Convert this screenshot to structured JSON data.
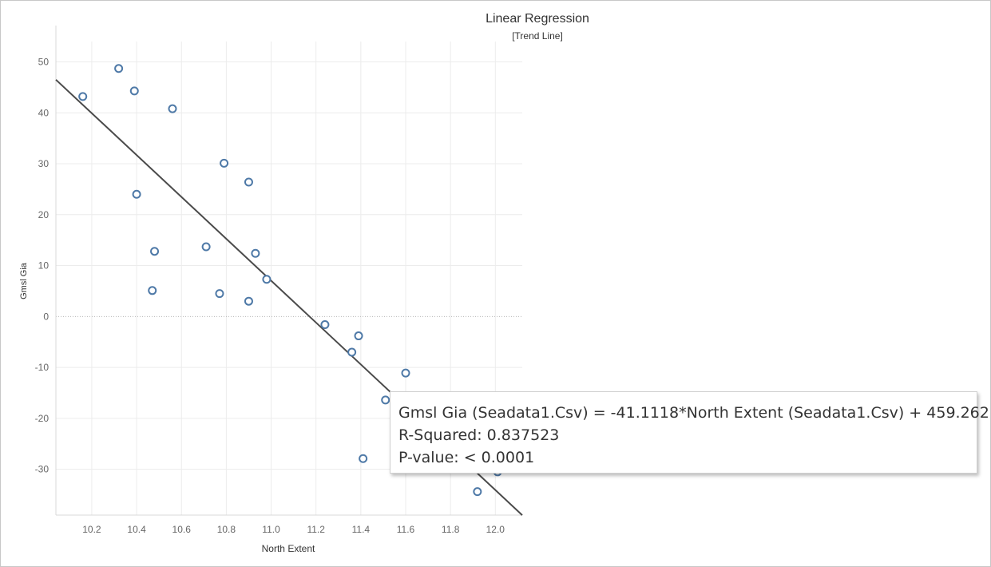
{
  "chart_data": {
    "type": "scatter",
    "title": "Linear Regression",
    "subtitle": "[Trend Line]",
    "xlabel": "North Extent",
    "ylabel": "Gmsl Gia",
    "xlim": [
      10.04,
      12.12
    ],
    "ylim": [
      -39,
      54
    ],
    "x_ticks": [
      10.2,
      10.4,
      10.6,
      10.8,
      11.0,
      11.2,
      11.4,
      11.6,
      11.8,
      12.0
    ],
    "x_tick_labels": [
      "10.2",
      "10.4",
      "10.6",
      "10.8",
      "11.0",
      "11.2",
      "11.4",
      "11.6",
      "11.8",
      "12.0"
    ],
    "y_ticks": [
      -30,
      -20,
      -10,
      0,
      10,
      20,
      30,
      40,
      50
    ],
    "y_tick_labels": [
      "-30",
      "-20",
      "-10",
      "0",
      "10",
      "20",
      "30",
      "40",
      "50"
    ],
    "grid": true,
    "marker_color": "#4e79a7",
    "trend_color": "#4a4a4a",
    "trend_line": {
      "slope": -41.1118,
      "intercept": 459.262
    },
    "points": [
      {
        "x": 10.16,
        "y": 43.2
      },
      {
        "x": 10.32,
        "y": 48.7
      },
      {
        "x": 10.39,
        "y": 44.3
      },
      {
        "x": 10.4,
        "y": 24.0
      },
      {
        "x": 10.47,
        "y": 5.1
      },
      {
        "x": 10.48,
        "y": 12.8
      },
      {
        "x": 10.56,
        "y": 40.8
      },
      {
        "x": 10.71,
        "y": 13.7
      },
      {
        "x": 10.77,
        "y": 4.5
      },
      {
        "x": 10.79,
        "y": 30.1
      },
      {
        "x": 10.9,
        "y": 26.4
      },
      {
        "x": 10.9,
        "y": 3.0
      },
      {
        "x": 10.93,
        "y": 12.4
      },
      {
        "x": 10.98,
        "y": 7.3
      },
      {
        "x": 11.24,
        "y": -1.6
      },
      {
        "x": 11.36,
        "y": -7.0
      },
      {
        "x": 11.39,
        "y": -3.8
      },
      {
        "x": 11.41,
        "y": -27.9
      },
      {
        "x": 11.51,
        "y": -16.4
      },
      {
        "x": 11.6,
        "y": -11.1
      },
      {
        "x": 11.92,
        "y": -34.4
      },
      {
        "x": 12.01,
        "y": -30.5
      }
    ]
  },
  "tooltip": {
    "equation": "Gmsl Gia (Seadata1.Csv) = -41.1118*North Extent (Seadata1.Csv) + 459.262",
    "r_squared": "R-Squared: 0.837523",
    "p_value": "P-value: < 0.0001"
  }
}
